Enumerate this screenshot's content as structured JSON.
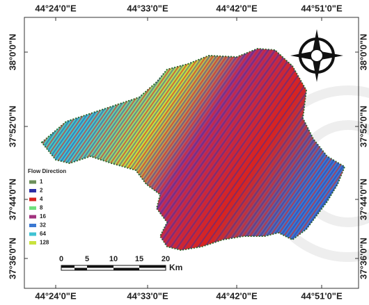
{
  "map": {
    "top_labels": [
      "44°24'0\"E",
      "44°33'0\"E",
      "44°42'0\"E",
      "44°51'0\"E"
    ],
    "bottom_labels": [
      "44°24'0\"E",
      "44°33'0\"E",
      "44°42'0\"E",
      "44°51'0\"E"
    ],
    "left_labels": [
      "38°0'0\"N",
      "37°52'0\"N",
      "37°44'0\"N",
      "37°36'0\"N"
    ],
    "right_labels": [
      "38°0'0\"N",
      "37°52'0\"N",
      "37°44'0\"N",
      "37°36'0\"N"
    ],
    "legend": {
      "title": "Flow Direction",
      "items": [
        {
          "label": "1",
          "color": "#6b8f5a"
        },
        {
          "label": "2",
          "color": "#2b2fa6"
        },
        {
          "label": "4",
          "color": "#d9231f"
        },
        {
          "label": "8",
          "color": "#6fe07c"
        },
        {
          "label": "16",
          "color": "#a2327e"
        },
        {
          "label": "32",
          "color": "#3b78d2"
        },
        {
          "label": "64",
          "color": "#3fc3d3"
        },
        {
          "label": "128",
          "color": "#c9e23e"
        }
      ]
    },
    "scale_bar": {
      "ticks": [
        "0",
        "5",
        "10",
        "15",
        "20"
      ],
      "unit": "Km"
    }
  }
}
